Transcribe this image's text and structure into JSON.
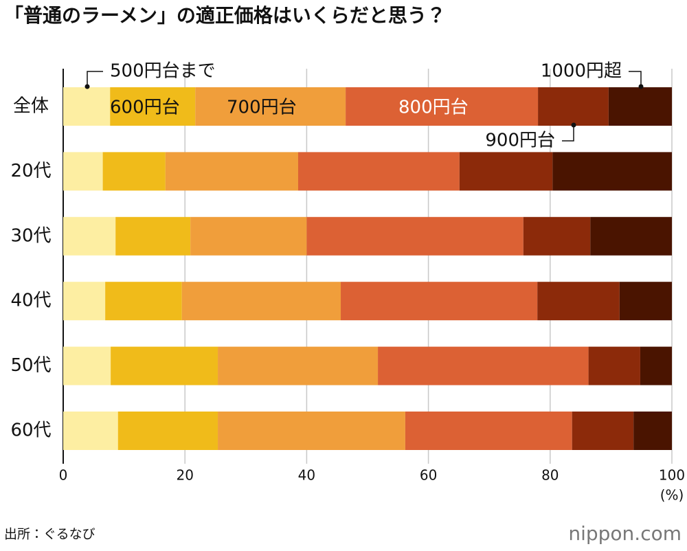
{
  "chart_data": {
    "type": "stacked-bar-horizontal",
    "title": "「普通のラーメン」の適正価格はいくらだと思う？",
    "categories": [
      "全体",
      "20代",
      "30代",
      "40代",
      "50代",
      "60代"
    ],
    "series": [
      {
        "name": "500円台まで",
        "color": "#fdeea2",
        "values": [
          7.7,
          6.5,
          8.6,
          6.9,
          7.8,
          9.0
        ]
      },
      {
        "name": "600円台",
        "color": "#f0bb1a",
        "values": [
          14.0,
          10.3,
          12.3,
          12.6,
          17.6,
          16.4
        ]
      },
      {
        "name": "700円台",
        "color": "#f09e3b",
        "values": [
          24.7,
          21.8,
          19.1,
          26.1,
          26.3,
          30.8
        ]
      },
      {
        "name": "800円台",
        "color": "#dc6134",
        "values": [
          31.6,
          26.5,
          35.6,
          32.3,
          34.6,
          27.4
        ]
      },
      {
        "name": "900円台",
        "color": "#8c2a0a",
        "values": [
          11.6,
          15.3,
          11.0,
          13.5,
          8.5,
          10.1
        ]
      },
      {
        "name": "1000円超",
        "color": "#4a1400",
        "values": [
          10.4,
          19.6,
          13.4,
          8.6,
          5.2,
          6.3
        ]
      }
    ],
    "xlim": [
      0,
      100
    ],
    "xticks": [
      0,
      20,
      40,
      60,
      80,
      100
    ],
    "x_unit": "(%)",
    "grid": true,
    "source": "出所：ぐるなび",
    "brand": "nippon.com"
  }
}
